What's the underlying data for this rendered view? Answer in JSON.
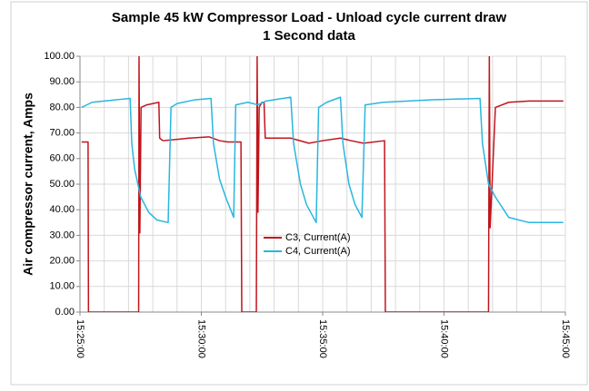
{
  "chart_data": {
    "type": "line",
    "title": "Sample 45 kW Compressor Load - Unload cycle current draw",
    "subtitle": "1 Second data",
    "y_label": "Air compressor current, Amps",
    "xlim": [
      "15:25:00",
      "15:45:00"
    ],
    "xticks": [
      "15:25:00",
      "15:30:00",
      "15:35:00",
      "15:40:00",
      "15:45:00"
    ],
    "xminorticks": [
      "15:26:00",
      "15:27:00",
      "15:28:00",
      "15:29:00",
      "15:31:00",
      "15:32:00",
      "15:33:00",
      "15:34:00",
      "15:36:00",
      "15:37:00",
      "15:38:00",
      "15:39:00",
      "15:41:00",
      "15:42:00",
      "15:43:00",
      "15:44:00"
    ],
    "ylim": [
      0,
      100
    ],
    "yticks": [
      {
        "value": 0,
        "label": "0.00"
      },
      {
        "value": 10,
        "label": "10.00"
      },
      {
        "value": 20,
        "label": "20.00"
      },
      {
        "value": 30,
        "label": "30.00"
      },
      {
        "value": 40,
        "label": "40.00"
      },
      {
        "value": 50,
        "label": "50.00"
      },
      {
        "value": 60,
        "label": "60.00"
      },
      {
        "value": 70,
        "label": "70.00"
      },
      {
        "value": 80,
        "label": "80.00"
      },
      {
        "value": 90,
        "label": "90.00"
      },
      {
        "value": 100,
        "label": "100.00"
      }
    ],
    "grid": true,
    "legend": "center",
    "series": [
      {
        "name": "C3, Current(A)",
        "color": "#c0151b",
        "x": [
          "15:25:04",
          "15:25:20",
          "15:25:21",
          "15:27:25",
          "15:27:26",
          "15:27:28",
          "15:27:31",
          "15:27:45",
          "15:28:15",
          "15:28:17",
          "15:28:25",
          "15:29:00",
          "15:29:30",
          "15:30:19",
          "15:30:45",
          "15:31:05",
          "15:31:38",
          "15:31:40",
          "15:32:16",
          "15:32:18",
          "15:32:20",
          "15:32:23",
          "15:32:30",
          "15:32:35",
          "15:32:38",
          "15:33:41",
          "15:34:26",
          "15:35:00",
          "15:35:44",
          "15:36:10",
          "15:36:41",
          "15:37:33",
          "15:37:35",
          "15:41:50",
          "15:41:52",
          "15:41:54",
          "15:42:07",
          "15:42:40",
          "15:43:30",
          "15:44:55"
        ],
        "values": [
          66.5,
          66.5,
          0,
          0,
          100,
          31,
          80,
          81,
          82,
          68,
          67,
          67.5,
          68,
          68.5,
          67,
          66.5,
          66.5,
          0,
          0,
          100,
          39,
          80,
          82,
          82,
          68,
          68,
          66,
          67,
          68,
          67,
          66,
          67,
          0,
          0,
          100,
          33,
          80,
          82,
          82.5,
          82.5
        ]
      },
      {
        "name": "C4, Current(A)",
        "color": "#29b6e0",
        "x": [
          "15:25:04",
          "15:25:30",
          "15:26:30",
          "15:27:04",
          "15:27:08",
          "15:27:15",
          "15:27:30",
          "15:27:50",
          "15:28:10",
          "15:28:38",
          "15:28:45",
          "15:29:00",
          "15:29:45",
          "15:30:24",
          "15:30:30",
          "15:30:45",
          "15:31:00",
          "15:31:20",
          "15:31:25",
          "15:31:55",
          "15:32:20",
          "15:32:40",
          "15:33:41",
          "15:33:48",
          "15:34:05",
          "15:34:20",
          "15:34:44",
          "15:34:50",
          "15:35:10",
          "15:35:44",
          "15:35:50",
          "15:36:05",
          "15:36:20",
          "15:36:37",
          "15:36:45",
          "15:37:30",
          "15:39:30",
          "15:41:29",
          "15:41:35",
          "15:41:50",
          "15:42:07",
          "15:42:40",
          "15:43:30",
          "15:44:55"
        ],
        "values": [
          80,
          82,
          83,
          83.5,
          66,
          56,
          45,
          39,
          36,
          35,
          80,
          81.5,
          83,
          83.5,
          66,
          52,
          45,
          37,
          81,
          82,
          81,
          82.5,
          84,
          66,
          50,
          42,
          35,
          80,
          82,
          84,
          66,
          50,
          42,
          37,
          81,
          82,
          83,
          83.5,
          66,
          50,
          45,
          37,
          35,
          35
        ]
      }
    ]
  }
}
